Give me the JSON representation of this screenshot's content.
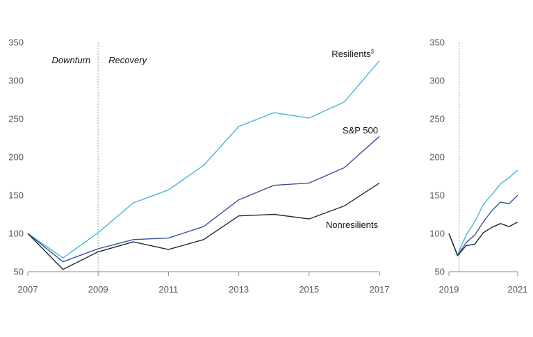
{
  "chart_data": [
    {
      "type": "line",
      "x": [
        2007,
        2008,
        2009,
        2010,
        2011,
        2012,
        2013,
        2014,
        2015,
        2016,
        2017
      ],
      "xticks": [
        "2007",
        "2009",
        "2011",
        "2013",
        "2015",
        "2017"
      ],
      "ylim": [
        50,
        350
      ],
      "yticks": [
        "50",
        "100",
        "150",
        "200",
        "250",
        "300",
        "350"
      ],
      "grid": false,
      "annotations": {
        "divider_x": 2009,
        "left": "Downturn",
        "right": "Recovery"
      },
      "series": [
        {
          "name": "Resilients",
          "superscript": "3",
          "color": "#46b4d8",
          "values": [
            100,
            68,
            101,
            140,
            157,
            189,
            240,
            258,
            251,
            272,
            326
          ]
        },
        {
          "name": "S&P 500",
          "color": "#3a4f9a",
          "values": [
            100,
            63,
            80,
            92,
            94,
            109,
            144,
            163,
            166,
            186,
            227
          ]
        },
        {
          "name": "Nonresilients",
          "color": "#1c2b2e",
          "values": [
            100,
            53,
            76,
            89,
            79,
            92,
            123,
            125,
            119,
            136,
            166
          ]
        }
      ]
    },
    {
      "type": "line",
      "x": [
        2019,
        2019.25,
        2019.5,
        2019.75,
        2020,
        2020.25,
        2020.5,
        2020.75,
        2021
      ],
      "xticks": [
        "2019",
        "2021"
      ],
      "ylim": [
        50,
        350
      ],
      "yticks": [
        "50",
        "100",
        "150",
        "200",
        "250",
        "300",
        "350"
      ],
      "grid": false,
      "annotations": {
        "divider_x": 2019.3
      },
      "series": [
        {
          "color": "#46b4d8",
          "values": [
            100,
            72,
            98,
            115,
            138,
            151,
            165,
            173,
            183
          ]
        },
        {
          "color": "#3a4f9a",
          "values": [
            100,
            71,
            88,
            98,
            115,
            130,
            141,
            139,
            150
          ]
        },
        {
          "color": "#1c2b2e",
          "values": [
            100,
            71,
            84,
            86,
            101,
            108,
            113,
            109,
            115
          ]
        }
      ]
    }
  ]
}
